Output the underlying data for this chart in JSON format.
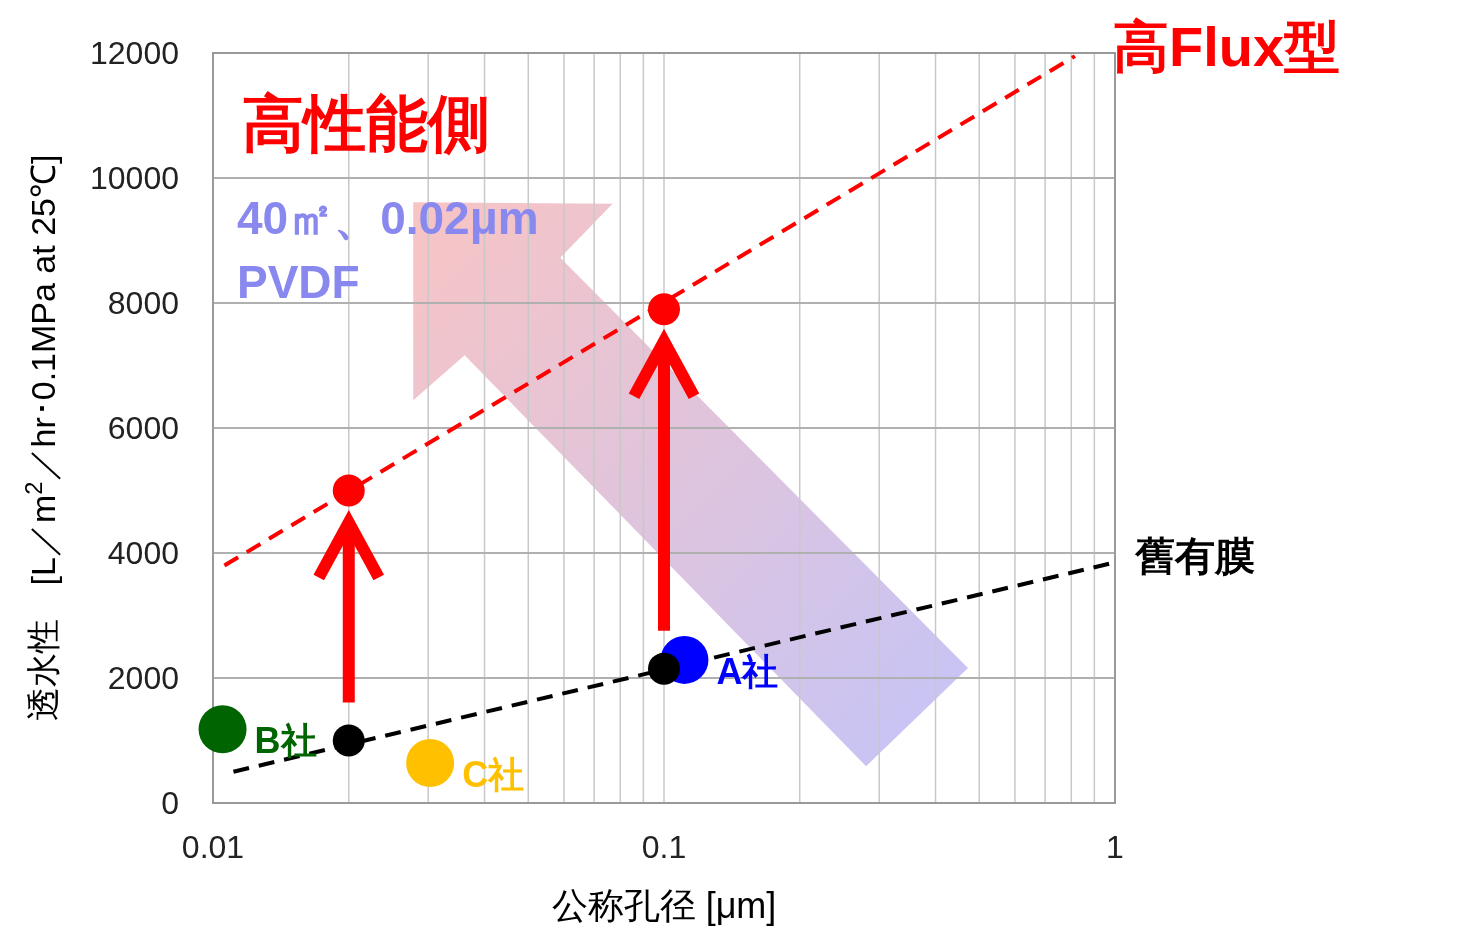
{
  "chart_data": {
    "type": "line",
    "xlabel": "公称孔径 [μm]",
    "ylabel": "透水性　[L／m$^{2}$／hr･0.1MPa at 25℃]",
    "log": "x",
    "xlim": [
      0.01,
      1
    ],
    "xticks": [
      0.01,
      0.1,
      1
    ],
    "ylim": [
      0,
      12000
    ],
    "yticks": [
      0,
      2000,
      4000,
      6000,
      8000,
      10000,
      12000
    ],
    "grid": true,
    "legend": false,
    "series": [
      {
        "name": "高Flux型",
        "type": "line",
        "line_style": "dashed",
        "color": "#ff0000",
        "x": [
          0.0106,
          0.815
        ],
        "values": [
          3800,
          11950
        ]
      },
      {
        "name": "舊有膜",
        "type": "line",
        "line_style": "dashed",
        "color": "#000000",
        "x": [
          0.0111,
          1
        ],
        "values": [
          500,
          3850
        ]
      },
      {
        "type": "scatter",
        "marker": "circle",
        "color": "#ff0000",
        "x": [
          0.02,
          0.1
        ],
        "values": [
          5000,
          7900
        ]
      },
      {
        "name": "B社",
        "type": "scatter",
        "marker": "circle",
        "color": "#006400",
        "x": [
          0.0105
        ],
        "values": [
          1180
        ]
      },
      {
        "name": "C社",
        "type": "scatter",
        "marker": "circle",
        "color": "#ffc000",
        "x": [
          0.0303
        ],
        "values": [
          640
        ]
      },
      {
        "name": "A社",
        "type": "scatter",
        "marker": "circle",
        "color": "#0000ff",
        "x": [
          0.111
        ],
        "values": [
          2290
        ]
      },
      {
        "type": "scatter",
        "marker": "circle",
        "color": "#000000",
        "x": [
          0.02,
          0.1
        ],
        "values": [
          1000,
          2150
        ]
      }
    ],
    "annotations": [
      "高性能側",
      "40㎡、0.02μm",
      "PVDF"
    ]
  }
}
